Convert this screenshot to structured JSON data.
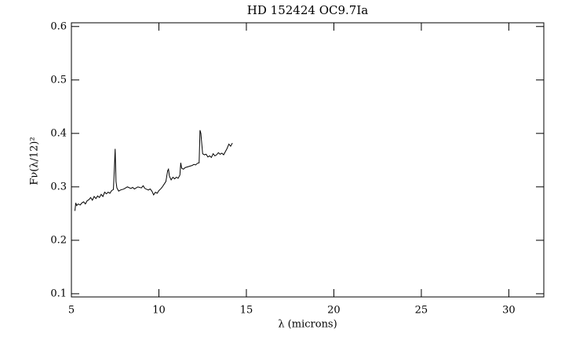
{
  "chart_data": {
    "type": "line",
    "title": "HD 152424 OC9.7Ia",
    "xlabel": "λ (microns)",
    "ylabel": "Fν(λ/12)²",
    "x": [
      5.2,
      5.25,
      5.3,
      5.4,
      5.5,
      5.6,
      5.7,
      5.8,
      5.9,
      6.0,
      6.1,
      6.2,
      6.3,
      6.4,
      6.5,
      6.6,
      6.7,
      6.8,
      6.9,
      7.0,
      7.1,
      7.2,
      7.3,
      7.4,
      7.45,
      7.5,
      7.55,
      7.6,
      7.7,
      7.8,
      8.0,
      8.2,
      8.4,
      8.5,
      8.6,
      8.8,
      9.0,
      9.1,
      9.2,
      9.4,
      9.5,
      9.6,
      9.7,
      9.8,
      9.9,
      10.0,
      10.1,
      10.2,
      10.3,
      10.4,
      10.5,
      10.55,
      10.6,
      10.7,
      10.8,
      10.9,
      11.0,
      11.1,
      11.2,
      11.25,
      11.3,
      11.4,
      11.5,
      11.7,
      11.9,
      12.0,
      12.1,
      12.2,
      12.3,
      12.35,
      12.4,
      12.5,
      12.6,
      12.7,
      12.8,
      12.9,
      13.0,
      13.1,
      13.2,
      13.3,
      13.4,
      13.5,
      13.6,
      13.7,
      13.8,
      13.9,
      14.0,
      14.1,
      14.2
    ],
    "values": [
      0.255,
      0.27,
      0.265,
      0.268,
      0.266,
      0.27,
      0.272,
      0.268,
      0.274,
      0.276,
      0.28,
      0.275,
      0.282,
      0.278,
      0.283,
      0.28,
      0.286,
      0.282,
      0.29,
      0.287,
      0.29,
      0.288,
      0.293,
      0.295,
      0.33,
      0.371,
      0.31,
      0.298,
      0.292,
      0.294,
      0.296,
      0.3,
      0.297,
      0.299,
      0.296,
      0.3,
      0.298,
      0.302,
      0.297,
      0.294,
      0.296,
      0.292,
      0.285,
      0.29,
      0.288,
      0.293,
      0.296,
      0.3,
      0.305,
      0.31,
      0.33,
      0.333,
      0.32,
      0.313,
      0.318,
      0.315,
      0.318,
      0.316,
      0.322,
      0.345,
      0.335,
      0.333,
      0.336,
      0.338,
      0.34,
      0.342,
      0.341,
      0.344,
      0.345,
      0.406,
      0.4,
      0.362,
      0.36,
      0.361,
      0.356,
      0.358,
      0.355,
      0.362,
      0.358,
      0.36,
      0.364,
      0.361,
      0.363,
      0.36,
      0.366,
      0.372,
      0.38,
      0.376,
      0.382
    ],
    "color": "#000000",
    "xlim": [
      5,
      32
    ],
    "ylim": [
      0.094,
      0.607
    ],
    "xticks": [
      5,
      10,
      15,
      20,
      25,
      30
    ],
    "yticks": [
      0.1,
      0.2,
      0.3,
      0.4,
      0.5,
      0.6
    ]
  }
}
